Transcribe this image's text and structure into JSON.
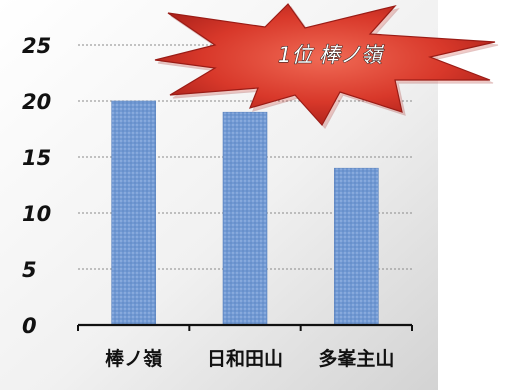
{
  "chart_data": {
    "type": "bar",
    "categories": [
      "棒ノ嶺",
      "日和田山",
      "多峯主山"
    ],
    "values": [
      20,
      19,
      14
    ],
    "title": "",
    "xlabel": "",
    "ylabel": "",
    "ylim": [
      0,
      25
    ],
    "yticks": [
      0,
      5,
      10,
      15,
      20,
      25
    ],
    "grid": true,
    "legend": "none",
    "bar_color": "#6e95d0",
    "annotation": {
      "text": "1位 棒ノ嶺",
      "color": "#d8382a"
    }
  }
}
